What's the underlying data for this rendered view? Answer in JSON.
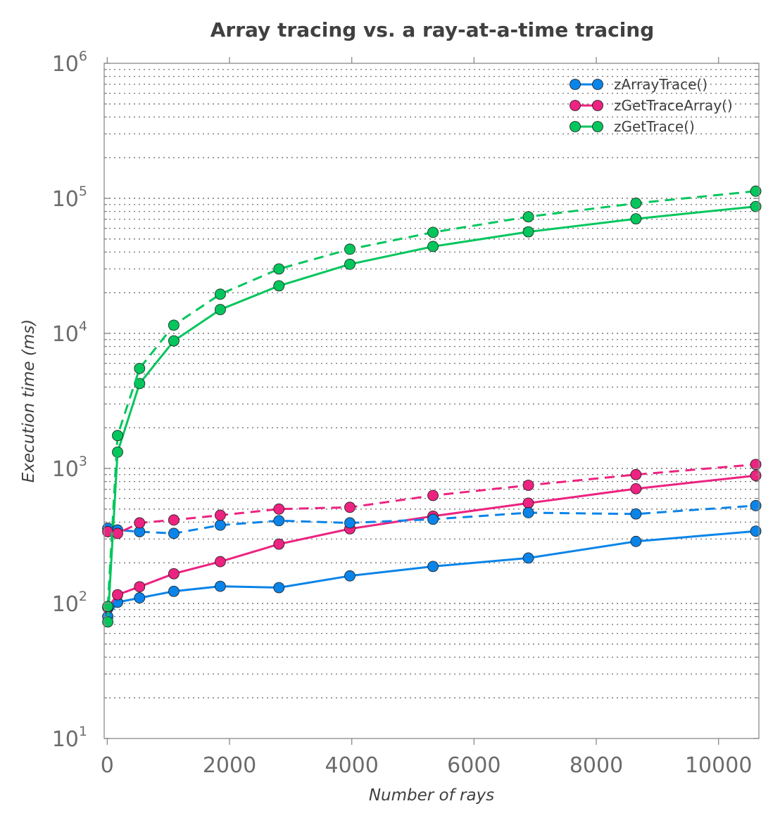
{
  "chart_data": {
    "type": "line",
    "title": "Array tracing vs. a ray-at-a-time tracing",
    "xlabel": "Number of rays",
    "ylabel": "Execution time (ms)",
    "xlim": [
      -50,
      10660
    ],
    "ylim": [
      10,
      1000000
    ],
    "yscale": "log",
    "grid": "horizontal dotted, major and minor",
    "legend_position": "top-right",
    "x_ticks": [
      0,
      2000,
      4000,
      6000,
      8000,
      10000
    ],
    "x_tick_labels": [
      "0",
      "2000",
      "4000",
      "6000",
      "8000",
      "10000"
    ],
    "y_ticks": [
      10,
      100,
      1000,
      10000,
      100000,
      1000000
    ],
    "y_tick_labels": [
      {
        "base": "10",
        "exp": "1"
      },
      {
        "base": "10",
        "exp": "2"
      },
      {
        "base": "10",
        "exp": "3"
      },
      {
        "base": "10",
        "exp": "4"
      },
      {
        "base": "10",
        "exp": "5"
      },
      {
        "base": "10",
        "exp": "6"
      }
    ],
    "x": [
      9,
      169,
      529,
      1089,
      1849,
      2809,
      3969,
      5329,
      6889,
      8649,
      10609
    ],
    "series": [
      {
        "name": "zArrayTrace()",
        "color": "#0a84e8",
        "dash": "solid",
        "in_legend": true,
        "values": [
          80,
          102,
          110,
          123,
          134,
          131,
          160,
          188,
          217,
          288,
          343
        ]
      },
      {
        "name": "zGetTraceArray()",
        "color": "#ec2380",
        "dash": "solid",
        "in_legend": true,
        "values": [
          93,
          116,
          133,
          166,
          204,
          275,
          357,
          443,
          553,
          707,
          885
        ]
      },
      {
        "name": "zGetTrace()",
        "color": "#04c65d",
        "dash": "solid",
        "in_legend": true,
        "values": [
          73,
          1320,
          4250,
          8800,
          15000,
          22500,
          32500,
          44000,
          56500,
          70500,
          87000
        ]
      },
      {
        "name": "zArrayTrace() (dashed)",
        "color": "#0a84e8",
        "dash": "dashed",
        "in_legend": false,
        "values": [
          360,
          350,
          340,
          330,
          380,
          410,
          395,
          420,
          470,
          460,
          530
        ]
      },
      {
        "name": "zGetTraceArray() (dashed)",
        "color": "#ec2380",
        "dash": "dashed",
        "in_legend": false,
        "values": [
          340,
          330,
          395,
          415,
          450,
          500,
          515,
          630,
          750,
          900,
          1070
        ]
      },
      {
        "name": "zGetTrace() (dashed)",
        "color": "#04c65d",
        "dash": "dashed",
        "in_legend": false,
        "values": [
          95,
          1750,
          5500,
          11500,
          19500,
          30000,
          42000,
          56000,
          73000,
          92000,
          113000
        ]
      }
    ]
  }
}
